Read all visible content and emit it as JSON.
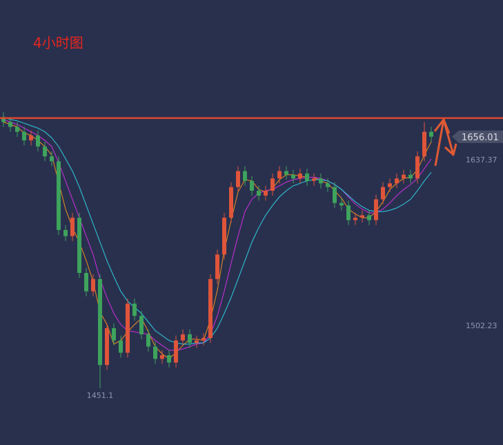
{
  "chart_data": {
    "type": "candlestick",
    "title": "4小时图",
    "ylim": [
      1404.8,
      1767.4
    ],
    "up_color": "#e0553a",
    "down_color": "#3ea35c",
    "resistance": 1671.2,
    "resistance_color": "#e0472f",
    "last_price": 1656.01,
    "price_labels": [
      1637.37,
      1502.23
    ],
    "low_label": 1451.1,
    "open": [
      1672,
      1668,
      1664,
      1660,
      1653,
      1657,
      1648,
      1640,
      1636,
      1580,
      1575,
      1590,
      1545,
      1530,
      1540,
      1470,
      1500,
      1490,
      1480,
      1520,
      1510,
      1495,
      1485,
      1475,
      1478,
      1472,
      1490,
      1495,
      1488,
      1490,
      1492,
      1540,
      1560,
      1590,
      1615,
      1628,
      1620,
      1612,
      1608,
      1612,
      1622,
      1628,
      1625,
      1622,
      1626,
      1620,
      1622,
      1618,
      1615,
      1602,
      1600,
      1588,
      1590,
      1592,
      1588,
      1605,
      1615,
      1618,
      1622,
      1625,
      1622,
      1640,
      1660
    ],
    "high": [
      1676,
      1672,
      1668,
      1664,
      1661,
      1661,
      1652,
      1644,
      1640,
      1584,
      1594,
      1594,
      1549,
      1544,
      1544,
      1504,
      1504,
      1494,
      1524,
      1524,
      1514,
      1499,
      1489,
      1482,
      1482,
      1494,
      1499,
      1499,
      1494,
      1496,
      1544,
      1564,
      1594,
      1619,
      1632,
      1632,
      1624,
      1616,
      1616,
      1626,
      1632,
      1632,
      1629,
      1630,
      1630,
      1626,
      1626,
      1622,
      1619,
      1606,
      1604,
      1594,
      1596,
      1596,
      1609,
      1619,
      1622,
      1626,
      1629,
      1629,
      1644,
      1668,
      1664
    ],
    "low": [
      1664,
      1660,
      1656,
      1649,
      1649,
      1644,
      1636,
      1632,
      1576,
      1571,
      1571,
      1541,
      1526,
      1526,
      1451.1,
      1466,
      1486,
      1476,
      1476,
      1506,
      1491,
      1481,
      1471,
      1471,
      1468,
      1468,
      1486,
      1484,
      1484,
      1486,
      1488,
      1536,
      1556,
      1586,
      1611,
      1616,
      1608,
      1604,
      1604,
      1608,
      1618,
      1621,
      1618,
      1618,
      1616,
      1616,
      1614,
      1611,
      1598,
      1596,
      1584,
      1584,
      1586,
      1584,
      1584,
      1601,
      1611,
      1614,
      1618,
      1618,
      1618,
      1636,
      1652
    ],
    "close": [
      1668,
      1664,
      1660,
      1653,
      1657,
      1648,
      1640,
      1636,
      1580,
      1575,
      1590,
      1545,
      1530,
      1540,
      1470,
      1500,
      1490,
      1480,
      1520,
      1510,
      1495,
      1485,
      1475,
      1478,
      1472,
      1490,
      1495,
      1488,
      1490,
      1492,
      1540,
      1560,
      1590,
      1615,
      1628,
      1620,
      1612,
      1608,
      1612,
      1622,
      1628,
      1625,
      1622,
      1626,
      1620,
      1622,
      1618,
      1615,
      1602,
      1600,
      1588,
      1590,
      1592,
      1588,
      1605,
      1615,
      1618,
      1622,
      1625,
      1622,
      1640,
      1660,
      1656.01
    ],
    "ma_lines": [
      {
        "color": "#f0901e",
        "values": [
          1668,
          1666,
          1664,
          1659,
          1657,
          1653,
          1648,
          1641,
          1619,
          1597,
          1582,
          1570,
          1555,
          1538,
          1513,
          1503,
          1487,
          1490,
          1497,
          1503,
          1508,
          1497,
          1485,
          1479,
          1475,
          1480,
          1486,
          1491,
          1491,
          1490,
          1507,
          1531,
          1563,
          1588,
          1611,
          1621,
          1620,
          1613,
          1611,
          1614,
          1621,
          1625,
          1625,
          1624,
          1623,
          1623,
          1620,
          1618,
          1612,
          1606,
          1597,
          1593,
          1590,
          1590,
          1595,
          1603,
          1613,
          1618,
          1622,
          1623,
          1629,
          1641,
          1652
        ]
      },
      {
        "color": "#d22ee0",
        "values": [
          1670,
          1668,
          1666,
          1663,
          1660,
          1657,
          1653,
          1648,
          1635,
          1620,
          1605,
          1590,
          1575,
          1560,
          1540,
          1525,
          1512,
          1503,
          1498,
          1497,
          1496,
          1495,
          1490,
          1486,
          1482,
          1482,
          1483,
          1485,
          1487,
          1488,
          1495,
          1510,
          1530,
          1553,
          1575,
          1595,
          1605,
          1610,
          1612,
          1613,
          1616,
          1619,
          1621,
          1622,
          1623,
          1623,
          1622,
          1620,
          1617,
          1613,
          1607,
          1601,
          1597,
          1594,
          1594,
          1597,
          1602,
          1608,
          1613,
          1617,
          1622,
          1630,
          1638
        ]
      },
      {
        "color": "#2fd0e0",
        "values": [
          1672,
          1670,
          1669,
          1667,
          1665,
          1663,
          1660,
          1655,
          1648,
          1638,
          1628,
          1615,
          1600,
          1585,
          1570,
          1555,
          1542,
          1530,
          1522,
          1517,
          1512,
          1505,
          1498,
          1494,
          1490,
          1488,
          1487,
          1487,
          1488,
          1488,
          1492,
          1500,
          1512,
          1525,
          1540,
          1555,
          1570,
          1582,
          1592,
          1600,
          1607,
          1612,
          1616,
          1618,
          1620,
          1621,
          1621,
          1620,
          1617,
          1613,
          1608,
          1603,
          1599,
          1596,
          1595,
          1595,
          1596,
          1598,
          1601,
          1605,
          1612,
          1620,
          1627
        ]
      }
    ]
  }
}
